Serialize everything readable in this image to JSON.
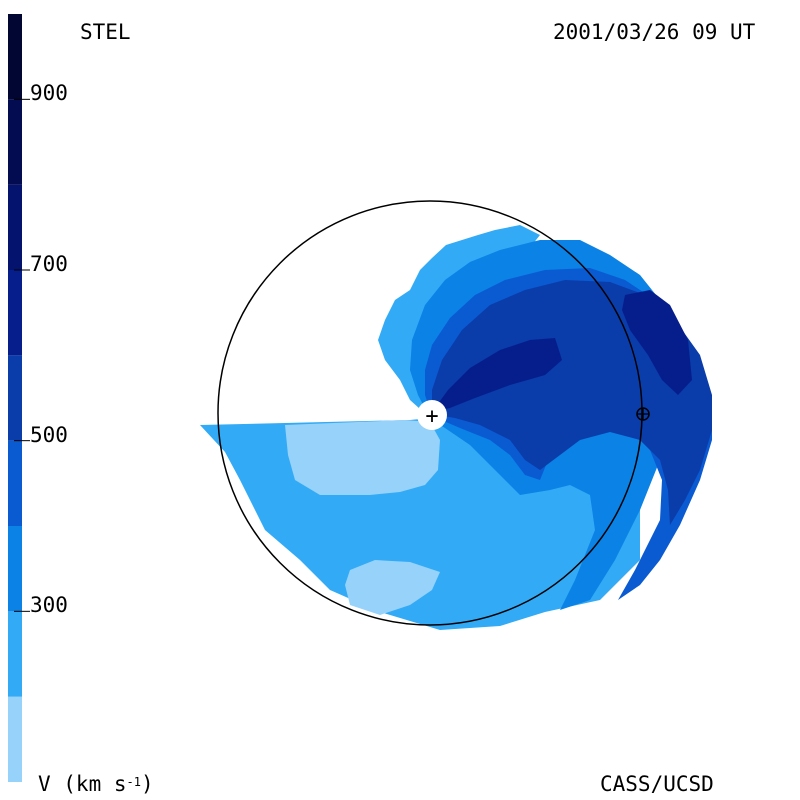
{
  "header": {
    "instrument": "STEL",
    "timestamp": "2001/03/26 09 UT",
    "credit": "CASS/UCSD"
  },
  "colorbar": {
    "label_prefix": "V (km s",
    "label_exp": "-1",
    "label_suffix": ")",
    "min": 100,
    "max": 1000,
    "ticks": [
      {
        "value": 900,
        "label": "900"
      },
      {
        "value": 700,
        "label": "700"
      },
      {
        "value": 500,
        "label": "500"
      },
      {
        "value": 300,
        "label": "300"
      }
    ],
    "levels": [
      {
        "from": 100,
        "to": 200,
        "color": "#96d2fa"
      },
      {
        "from": 200,
        "to": 300,
        "color": "#32aaf5"
      },
      {
        "from": 300,
        "to": 400,
        "color": "#0a82e6"
      },
      {
        "from": 400,
        "to": 500,
        "color": "#0a5ad2"
      },
      {
        "from": 500,
        "to": 600,
        "color": "#0a3caa"
      },
      {
        "from": 600,
        "to": 700,
        "color": "#061e8c"
      },
      {
        "from": 700,
        "to": 800,
        "color": "#04136e"
      },
      {
        "from": 800,
        "to": 900,
        "color": "#030c50"
      },
      {
        "from": 900,
        "to": 1000,
        "color": "#020632"
      }
    ]
  },
  "chart_data": {
    "type": "heatmap",
    "title": "",
    "quantity": "V (km s-1)",
    "color_range": [
      100,
      1000
    ],
    "markers": [
      {
        "name": "Sun",
        "symbol": "+"
      },
      {
        "name": "Earth",
        "symbol": "⊕"
      }
    ]
  }
}
